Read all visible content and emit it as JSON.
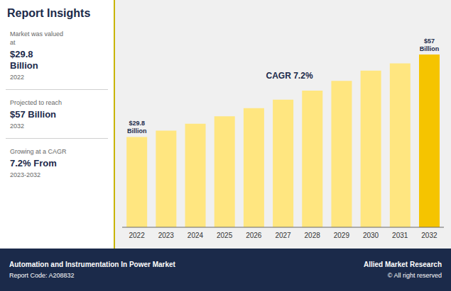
{
  "chart_data": {
    "type": "bar",
    "title": "Report Insights",
    "categories": [
      "2022",
      "2023",
      "2024",
      "2025",
      "2026",
      "2027",
      "2028",
      "2029",
      "2030",
      "2031",
      "2032"
    ],
    "values": [
      29.8,
      31.9,
      34.2,
      36.6,
      39.3,
      42.1,
      45.1,
      48.3,
      51.7,
      54.1,
      57.0
    ],
    "colors": [
      "#FFE680",
      "#FFE680",
      "#FFE680",
      "#FFE680",
      "#FFE680",
      "#FFE680",
      "#FFE680",
      "#FFE680",
      "#FFE680",
      "#FFE680",
      "#F5C400"
    ],
    "ylim": [
      0,
      68
    ],
    "tick_labels": "x",
    "grid": false,
    "data_labels": true,
    "value_labels": [
      "$29.8\nBillion",
      null,
      null,
      null,
      null,
      null,
      null,
      null,
      null,
      null,
      "$57\nBillion"
    ],
    "annotations": [
      "CAGR 7.2%",
      "Market was valued\nat",
      "$29.8\nBillion",
      "2022",
      "Projected to reach",
      "$57 Billion",
      "2032",
      "Growing at a CAGR",
      "7.2% From",
      "2023-2032",
      "Automation and Instrumentation In Power Market",
      "Report Code: A208832",
      "Allied Market Research",
      "© All right reserved"
    ]
  }
}
